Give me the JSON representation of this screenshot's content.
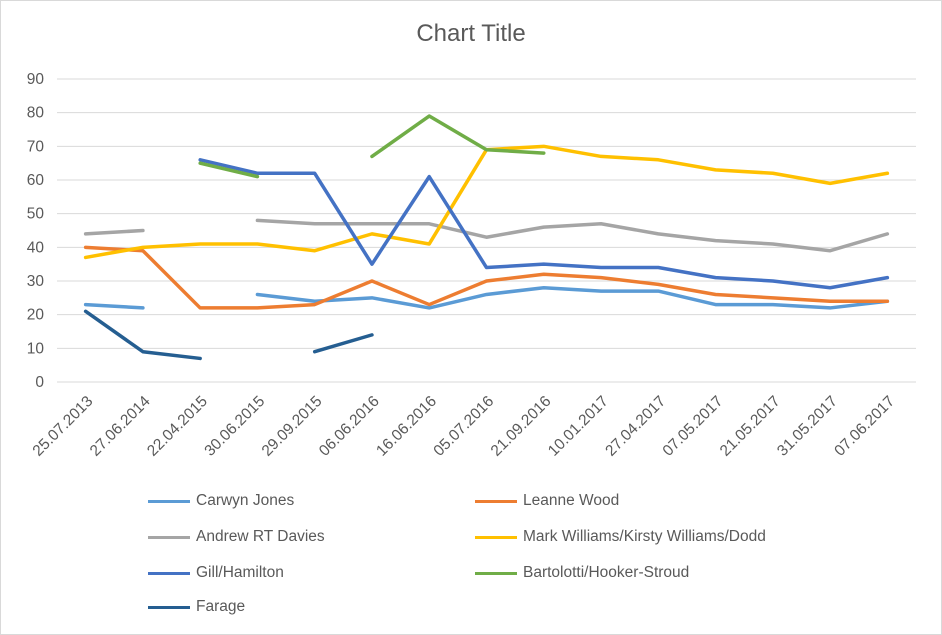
{
  "chart_data": {
    "type": "line",
    "title": "Chart Title",
    "xlabel": "",
    "ylabel": "",
    "ylim": [
      0,
      90
    ],
    "yticks": [
      "0",
      "10",
      "20",
      "30",
      "40",
      "50",
      "60",
      "70",
      "80",
      "90"
    ],
    "grid": "horizontal",
    "legend_position": "bottom",
    "categories": [
      "25.07.2013",
      "27.06.2014",
      "22.04.2015",
      "30.06.2015",
      "29.09.2015",
      "06.06.2016",
      "16.06.2016",
      "05.07.2016",
      "21.09.2016",
      "10.01.2017",
      "27.04.2017",
      "07.05.2017",
      "21.05.2017",
      "31.05.2017",
      "07.06.2017"
    ],
    "series": [
      {
        "name": "Carwyn Jones",
        "color": "#5b9bd5",
        "values": [
          23,
          22,
          null,
          26,
          24,
          25,
          22,
          26,
          28,
          27,
          27,
          23,
          23,
          22,
          24
        ]
      },
      {
        "name": "Leanne Wood",
        "color": "#ed7d31",
        "values": [
          40,
          39,
          22,
          22,
          23,
          30,
          23,
          30,
          32,
          31,
          29,
          26,
          25,
          24,
          24
        ]
      },
      {
        "name": "Andrew RT Davies",
        "color": "#a5a5a5",
        "values": [
          44,
          45,
          null,
          48,
          47,
          47,
          47,
          43,
          46,
          47,
          44,
          42,
          41,
          39,
          44
        ]
      },
      {
        "name": "Mark Williams/Kirsty Williams/Dodd",
        "color": "#ffc000",
        "values": [
          37,
          40,
          41,
          41,
          39,
          44,
          41,
          69,
          70,
          67,
          66,
          63,
          62,
          59,
          62
        ]
      },
      {
        "name": "Gill/Hamilton",
        "color": "#4472c4",
        "values": [
          null,
          null,
          66,
          62,
          62,
          35,
          61,
          34,
          35,
          34,
          34,
          31,
          30,
          28,
          31
        ]
      },
      {
        "name": "Bartolotti/Hooker-Stroud",
        "color": "#70ad47",
        "values": [
          null,
          null,
          65,
          61,
          null,
          67,
          79,
          69,
          68,
          null,
          null,
          null,
          null,
          null,
          null
        ]
      },
      {
        "name": "Farage",
        "color": "#255e91",
        "values": [
          21,
          9,
          7,
          null,
          9,
          14,
          null,
          null,
          null,
          null,
          null,
          null,
          null,
          null,
          null
        ]
      }
    ]
  }
}
